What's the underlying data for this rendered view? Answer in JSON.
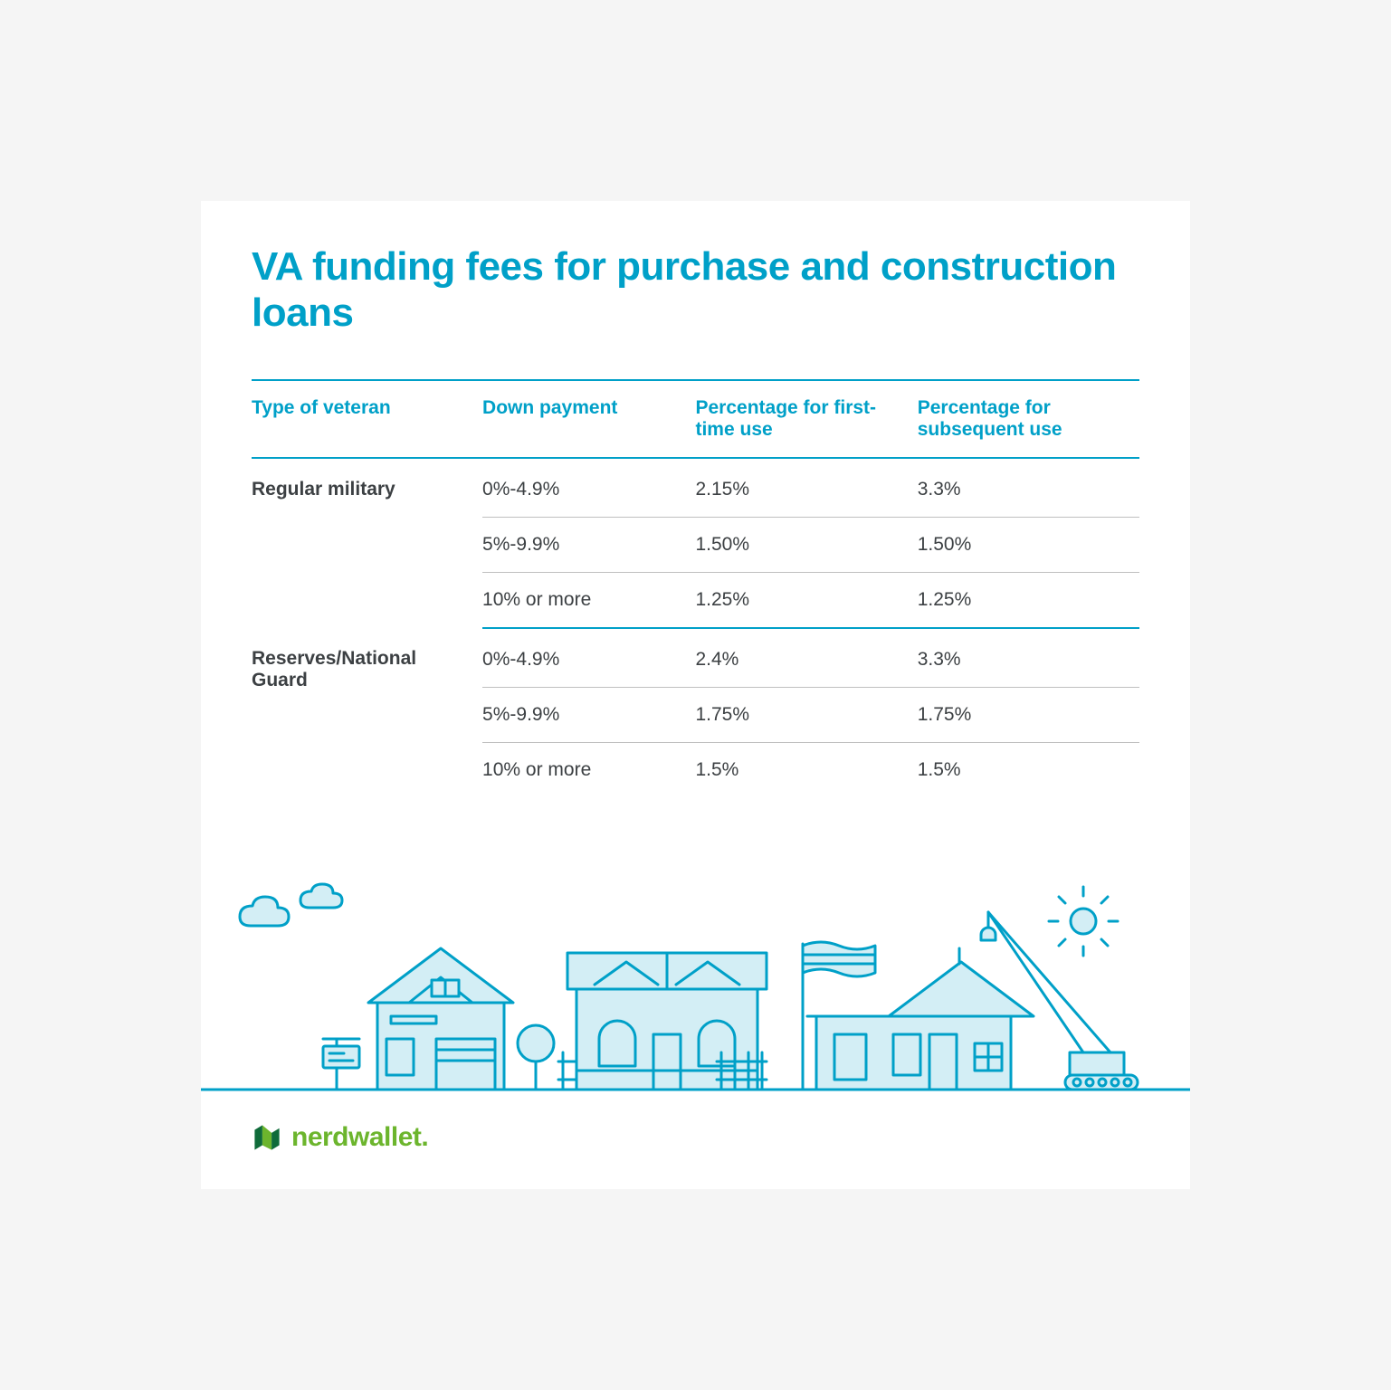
{
  "colors": {
    "accent": "#00a0c8",
    "text": "#3c4043",
    "rule": "#bfbfbf",
    "illus_stroke": "#00a0c8",
    "illus_fill": "#d3eef5",
    "brand_green": "#6cb52d",
    "brand_dark": "#0f6b3a",
    "white": "#ffffff"
  },
  "title": "VA funding fees for purchase and construction loans",
  "columns": [
    "Type of veteran",
    "Down payment",
    "Percentage for first-time use",
    "Percentage for subsequent use"
  ],
  "groups": [
    {
      "label": "Regular military",
      "rows": [
        {
          "down_payment": "0%-4.9%",
          "first_use": "2.15%",
          "subsequent": "3.3%"
        },
        {
          "down_payment": "5%-9.9%",
          "first_use": "1.50%",
          "subsequent": "1.50%"
        },
        {
          "down_payment": "10% or more",
          "first_use": "1.25%",
          "subsequent": "1.25%"
        }
      ]
    },
    {
      "label": "Reserves/National Guard",
      "rows": [
        {
          "down_payment": "0%-4.9%",
          "first_use": "2.4%",
          "subsequent": "3.3%"
        },
        {
          "down_payment": "5%-9.9%",
          "first_use": "1.75%",
          "subsequent": "1.75%"
        },
        {
          "down_payment": "10% or more",
          "first_use": "1.5%",
          "subsequent": "1.5%"
        }
      ]
    }
  ],
  "brand": "nerdwallet."
}
